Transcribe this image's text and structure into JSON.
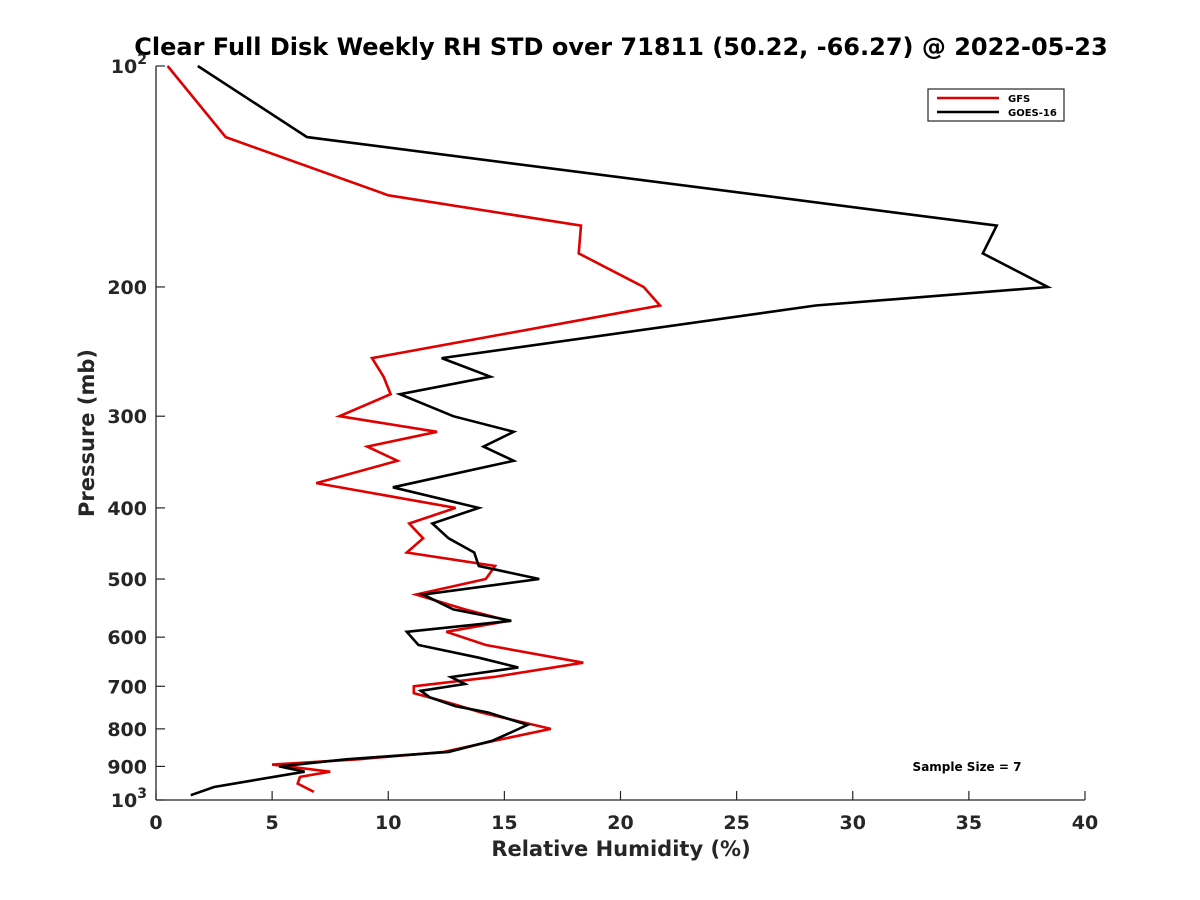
{
  "chart_data": {
    "type": "line",
    "title": "Clear Full Disk Weekly RH STD over 71811 (50.22, -66.27) @ 2022-05-23",
    "xlabel": "Relative Humidity (%)",
    "ylabel": "Pressure (mb)",
    "xlim": [
      0,
      40
    ],
    "ylim": [
      100,
      1000
    ],
    "y_scale": "log",
    "y_reversed": true,
    "x_ticks": [
      {
        "value": 0,
        "label": "0"
      },
      {
        "value": 5,
        "label": "5"
      },
      {
        "value": 10,
        "label": "10"
      },
      {
        "value": 15,
        "label": "15"
      },
      {
        "value": 20,
        "label": "20"
      },
      {
        "value": 25,
        "label": "25"
      },
      {
        "value": 30,
        "label": "30"
      },
      {
        "value": 35,
        "label": "35"
      },
      {
        "value": 40,
        "label": "40"
      }
    ],
    "y_ticks": [
      {
        "value": 100,
        "label": "10",
        "sup": "2"
      },
      {
        "value": 200,
        "label": "200",
        "sup": ""
      },
      {
        "value": 300,
        "label": "300",
        "sup": ""
      },
      {
        "value": 400,
        "label": "400",
        "sup": ""
      },
      {
        "value": 500,
        "label": "500",
        "sup": ""
      },
      {
        "value": 600,
        "label": "600",
        "sup": ""
      },
      {
        "value": 700,
        "label": "700",
        "sup": ""
      },
      {
        "value": 800,
        "label": "800",
        "sup": ""
      },
      {
        "value": 900,
        "label": "900",
        "sup": ""
      },
      {
        "value": 1000,
        "label": "10",
        "sup": "3"
      }
    ],
    "grid": false,
    "legend_position": "top-right",
    "series": [
      {
        "name": "GFS",
        "color": "#e00000",
        "points": [
          [
            0.5,
            100
          ],
          [
            3.0,
            125
          ],
          [
            10.0,
            150
          ],
          [
            18.3,
            165
          ],
          [
            18.2,
            180
          ],
          [
            21.0,
            200
          ],
          [
            21.7,
            212
          ],
          [
            9.3,
            250
          ],
          [
            9.8,
            265
          ],
          [
            10.1,
            280
          ],
          [
            7.9,
            300
          ],
          [
            12.1,
            315
          ],
          [
            9.1,
            330
          ],
          [
            10.4,
            345
          ],
          [
            6.9,
            370
          ],
          [
            12.9,
            400
          ],
          [
            10.9,
            420
          ],
          [
            11.5,
            440
          ],
          [
            10.8,
            460
          ],
          [
            14.6,
            480
          ],
          [
            14.2,
            500
          ],
          [
            11.2,
            525
          ],
          [
            13.3,
            550
          ],
          [
            15.2,
            570
          ],
          [
            12.5,
            590
          ],
          [
            14.2,
            615
          ],
          [
            18.4,
            650
          ],
          [
            14.5,
            680
          ],
          [
            11.1,
            700
          ],
          [
            11.1,
            715
          ],
          [
            12.8,
            740
          ],
          [
            14.0,
            760
          ],
          [
            17.0,
            800
          ],
          [
            14.6,
            830
          ],
          [
            12.4,
            860
          ],
          [
            8.7,
            880
          ],
          [
            5.0,
            895
          ],
          [
            7.5,
            915
          ],
          [
            6.2,
            930
          ],
          [
            6.1,
            950
          ],
          [
            6.8,
            975
          ]
        ]
      },
      {
        "name": "GOES-16",
        "color": "#000000",
        "points": [
          [
            1.8,
            100
          ],
          [
            6.5,
            125
          ],
          [
            36.2,
            165
          ],
          [
            35.6,
            180
          ],
          [
            38.4,
            200
          ],
          [
            28.4,
            212
          ],
          [
            12.3,
            250
          ],
          [
            14.4,
            265
          ],
          [
            10.5,
            280
          ],
          [
            12.8,
            300
          ],
          [
            15.4,
            315
          ],
          [
            14.1,
            330
          ],
          [
            15.4,
            345
          ],
          [
            10.2,
            375
          ],
          [
            13.9,
            400
          ],
          [
            11.9,
            420
          ],
          [
            12.6,
            440
          ],
          [
            13.7,
            460
          ],
          [
            13.9,
            480
          ],
          [
            16.5,
            500
          ],
          [
            11.5,
            525
          ],
          [
            12.8,
            550
          ],
          [
            15.3,
            570
          ],
          [
            10.8,
            590
          ],
          [
            11.3,
            615
          ],
          [
            13.9,
            640
          ],
          [
            15.6,
            660
          ],
          [
            12.7,
            680
          ],
          [
            13.3,
            695
          ],
          [
            11.4,
            710
          ],
          [
            11.8,
            725
          ],
          [
            12.9,
            745
          ],
          [
            14.3,
            760
          ],
          [
            16.0,
            790
          ],
          [
            14.5,
            830
          ],
          [
            12.6,
            860
          ],
          [
            8.2,
            880
          ],
          [
            5.3,
            900
          ],
          [
            6.4,
            915
          ],
          [
            4.2,
            940
          ],
          [
            2.5,
            960
          ],
          [
            1.5,
            985
          ]
        ]
      }
    ],
    "annotations": [
      "Sample Size = 7"
    ]
  }
}
